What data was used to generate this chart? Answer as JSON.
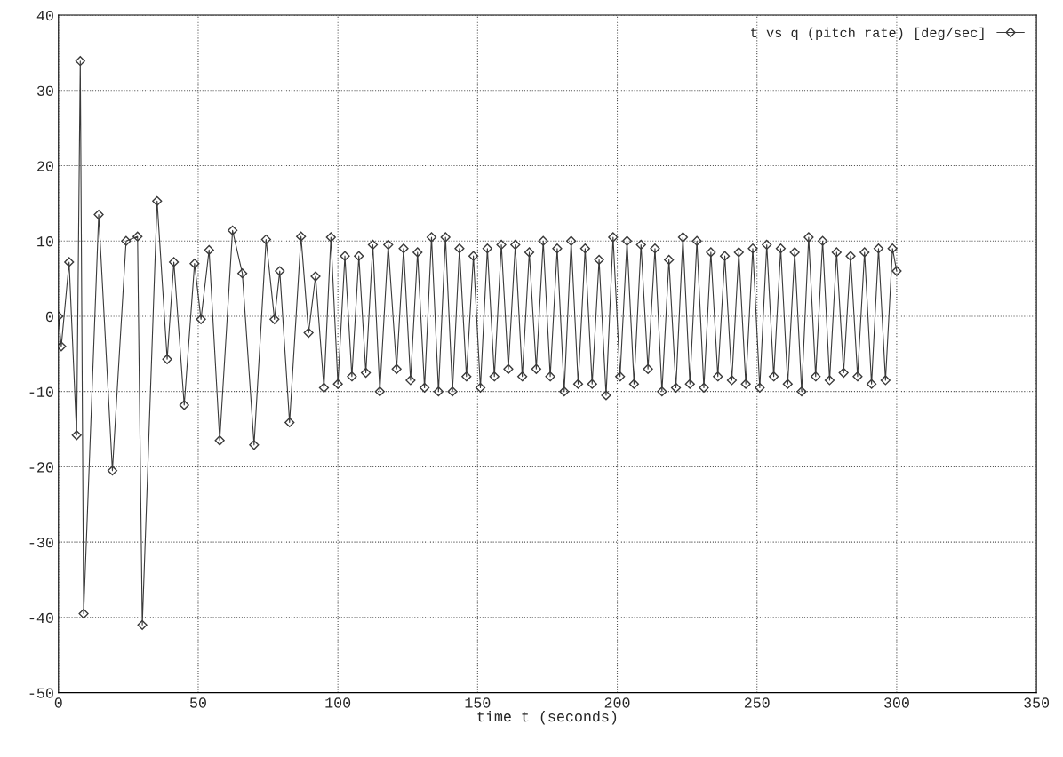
{
  "chart_data": {
    "type": "line",
    "xlabel": "time t (seconds)",
    "xlim": [
      0,
      350
    ],
    "ylim": [
      -50,
      40
    ],
    "xticks": [
      0,
      50,
      100,
      150,
      200,
      250,
      300,
      350
    ],
    "yticks": [
      -50,
      -40,
      -30,
      -20,
      -10,
      0,
      10,
      20,
      30,
      40
    ],
    "grid": true,
    "legend": "top right",
    "marker": "diamond",
    "line_style": "solid",
    "series": [
      {
        "name": "t vs q (pitch rate) [deg/sec]",
        "color": "#3a3a3a",
        "x": [
          0,
          1,
          3.8,
          6.5,
          7.8,
          9,
          14.4,
          19.3,
          24.2,
          28.3,
          30,
          35.3,
          38.9,
          41.3,
          45,
          48.7,
          51,
          53.9,
          57.7,
          62.3,
          65.8,
          70,
          74.3,
          77.3,
          79.2,
          82.7,
          86.8,
          89.5,
          92,
          95,
          97.5,
          100,
          102.5,
          105,
          107.5,
          110,
          112.5,
          115,
          118,
          121,
          123.5,
          126,
          128.5,
          131,
          133.5,
          136,
          138.5,
          141,
          143.5,
          146,
          148.5,
          151,
          153.5,
          156,
          158.5,
          161,
          163.5,
          166,
          168.5,
          171,
          173.5,
          176,
          178.5,
          181,
          183.5,
          186,
          188.5,
          191,
          193.5,
          196,
          198.5,
          201,
          203.5,
          206,
          208.5,
          211,
          213.5,
          216,
          218.5,
          221,
          223.5,
          226,
          228.5,
          231,
          233.5,
          236,
          238.5,
          241,
          243.5,
          246,
          248.5,
          251,
          253.5,
          256,
          258.5,
          261,
          263.5,
          266,
          268.5,
          271,
          273.5,
          276,
          278.5,
          281,
          283.5,
          286,
          288.5,
          291,
          293.5,
          296,
          298.5,
          300
        ],
        "values": [
          0,
          -4,
          7.2,
          -15.8,
          33.9,
          -39.5,
          13.5,
          -20.5,
          10,
          10.6,
          -41,
          15.3,
          -5.7,
          7.2,
          -11.8,
          7,
          -0.4,
          8.8,
          -16.5,
          11.4,
          5.7,
          -17.1,
          10.2,
          -0.4,
          6,
          -14.1,
          10.6,
          -2.2,
          5.3,
          -9.5,
          10.5,
          -9,
          8,
          -8,
          8,
          -7.5,
          9.5,
          -10,
          9.5,
          -7,
          9,
          -8.5,
          8.5,
          -9.5,
          10.5,
          -10,
          10.5,
          -10,
          9,
          -8,
          8,
          -9.5,
          9,
          -8,
          9.5,
          -7,
          9.5,
          -8,
          8.5,
          -7,
          10,
          -8,
          9,
          -10,
          10,
          -9,
          9,
          -9,
          7.5,
          -10.5,
          10.5,
          -8,
          10,
          -9,
          9.5,
          -7,
          9,
          -10,
          7.5,
          -9.5,
          10.5,
          -9,
          10,
          -9.5,
          8.5,
          -8,
          8,
          -8.5,
          8.5,
          -9,
          9,
          -9.5,
          9.5,
          -8,
          9,
          -9,
          8.5,
          -10,
          10.5,
          -8,
          10,
          -8.5,
          8.5,
          -7.5,
          8,
          -8,
          8.5,
          -9,
          9,
          -8.5,
          9,
          6
        ]
      }
    ]
  }
}
